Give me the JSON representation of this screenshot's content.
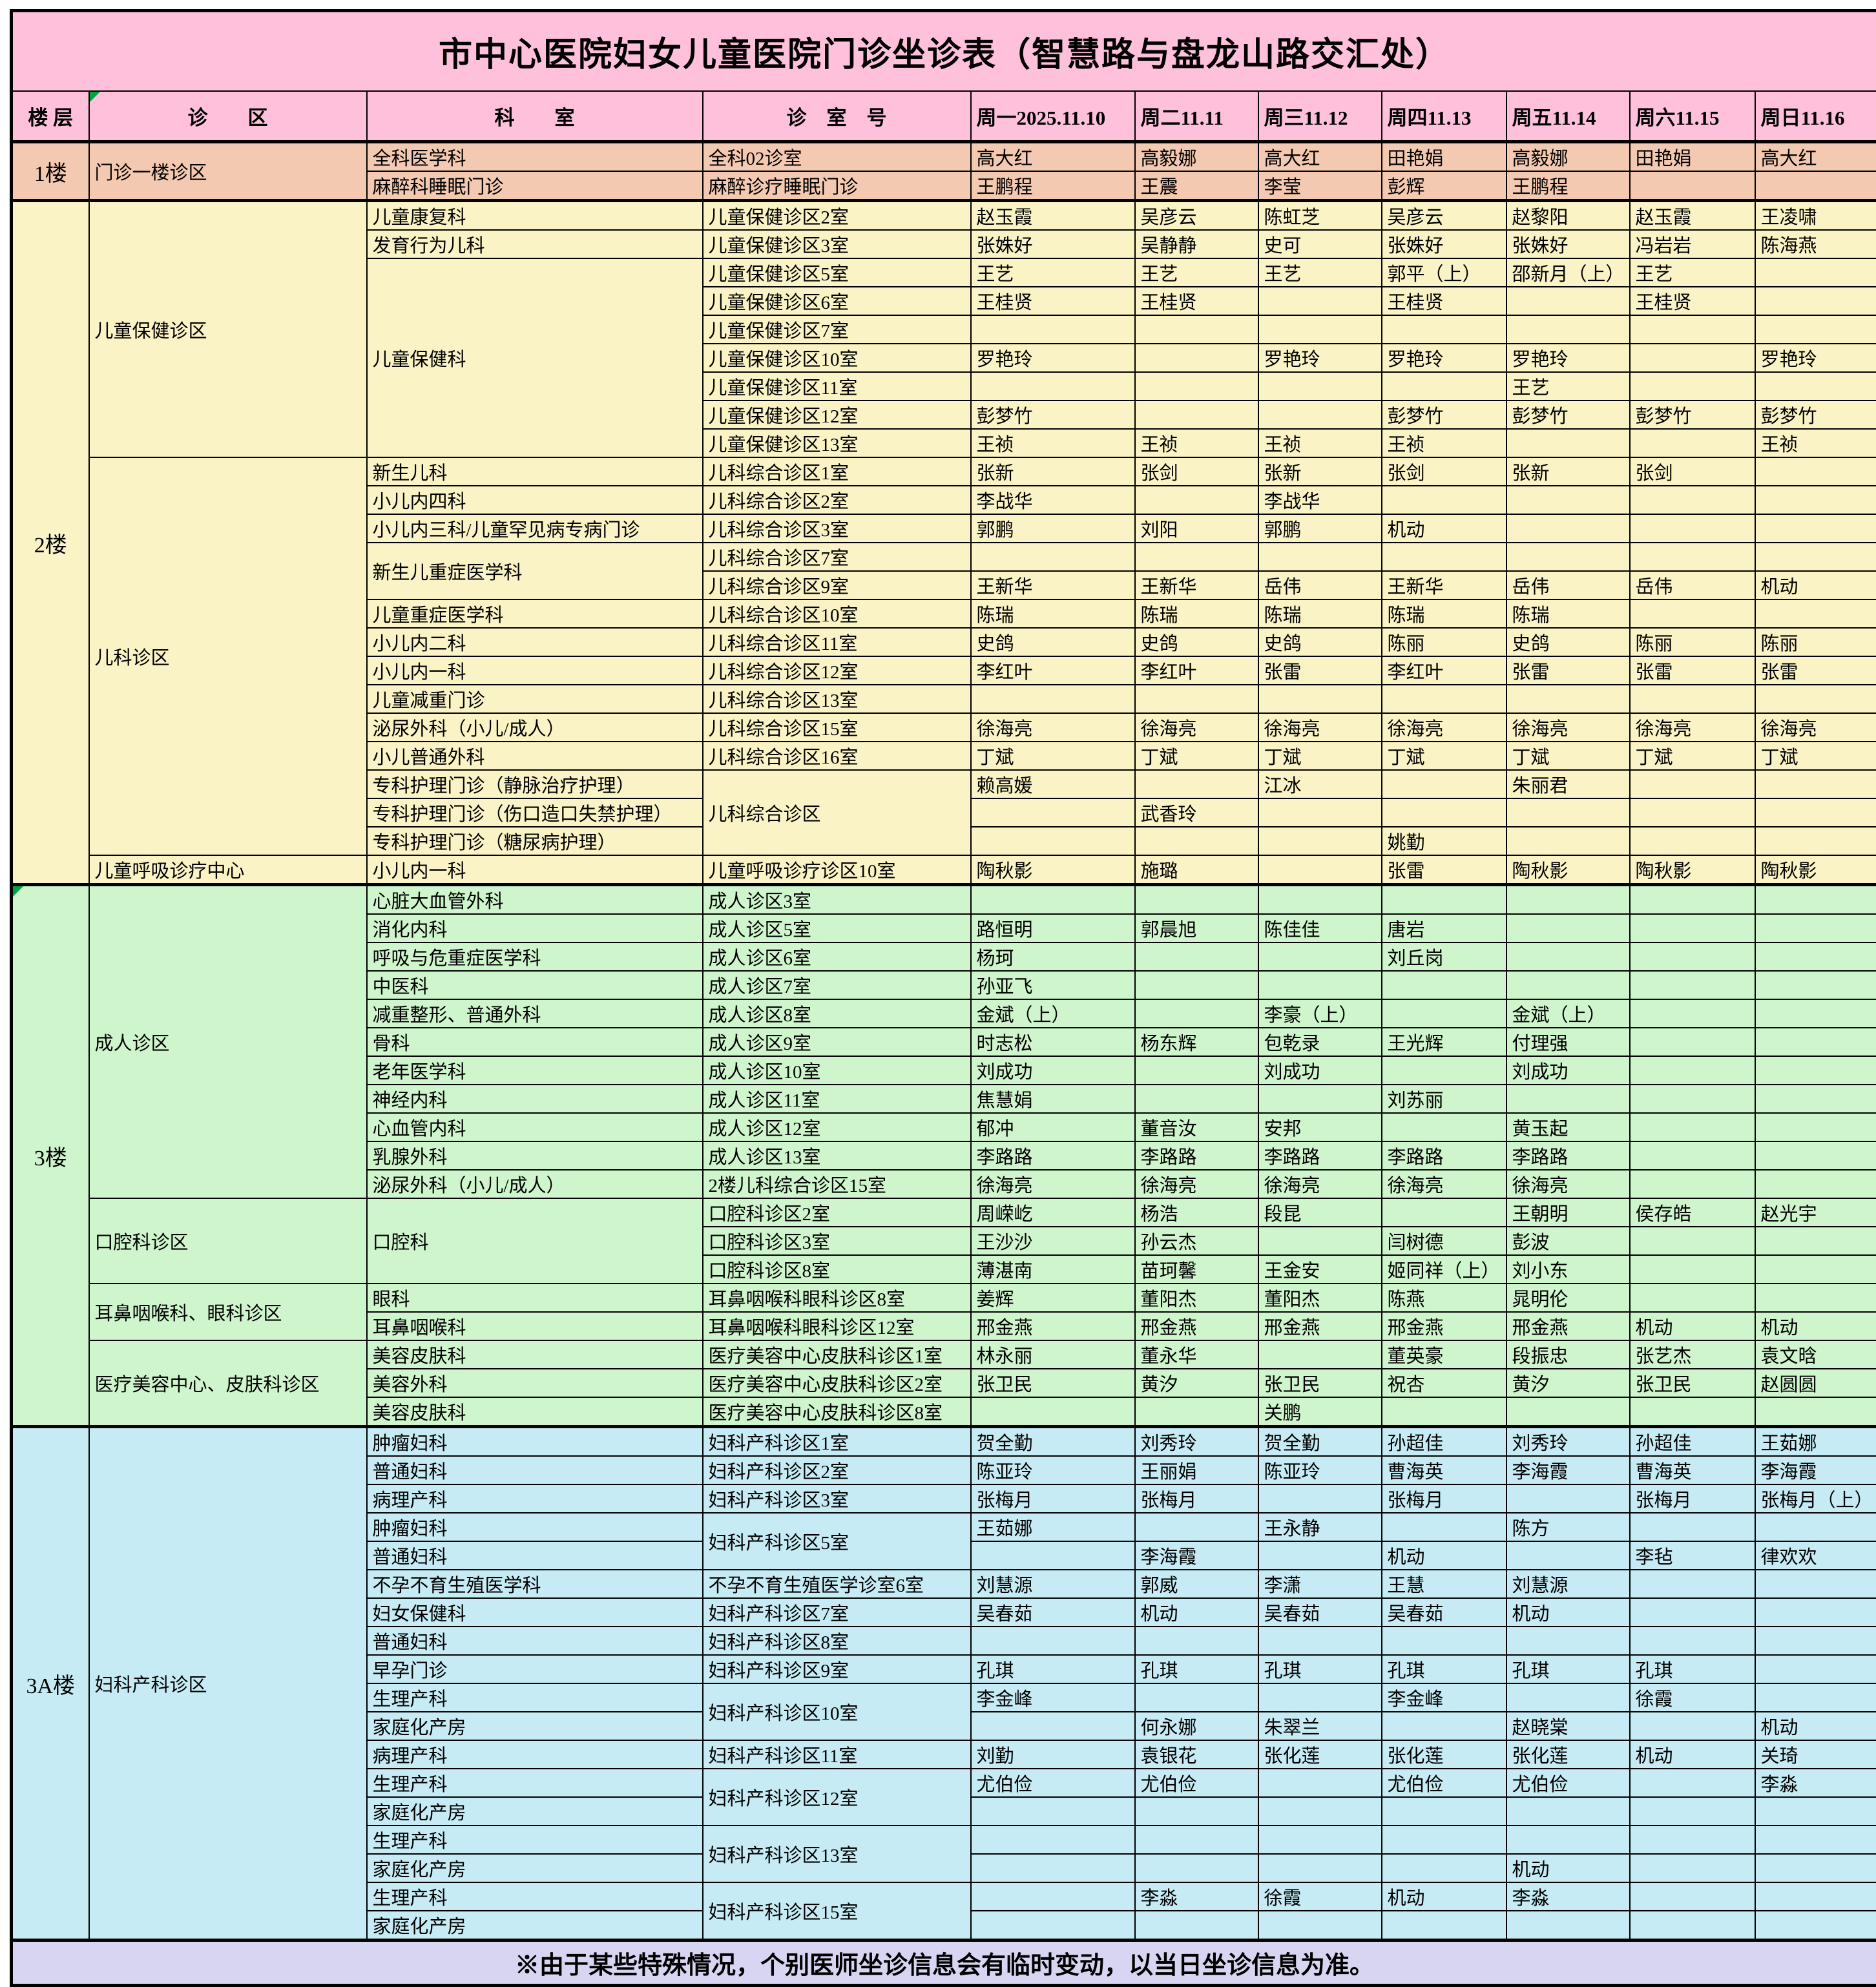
{
  "title": "市中心医院妇女儿童医院门诊坐诊表（智慧路与盘龙山路交汇处）",
  "footer": "※由于某些特殊情况，个别医师坐诊信息会有临时变动，以当日坐诊信息为准。",
  "columns": [
    "楼 层",
    "诊　　区",
    "科　　室",
    "诊　室　号",
    "周一2025.11.10",
    "周二11.11",
    "周三11.12",
    "周四11.13",
    "周五11.14",
    "周六11.15",
    "周日11.16"
  ],
  "colors": {
    "header_pink": "#FFC0DC",
    "f1": "#F4C9B1",
    "f2": "#FAF3C5",
    "f3": "#CFF5CD",
    "f3a": "#C6EBF4",
    "footer_lavender": "#D8D5F2",
    "border_black": "#000000",
    "flag_green": "#00A33D"
  },
  "rows": [
    {
      "floor": {
        "label": "1楼",
        "key": "f1",
        "span": 2
      },
      "area": {
        "label": "门诊一楼诊区",
        "span": 2
      },
      "dept": {
        "label": "全科医学科"
      },
      "room": {
        "label": "全科02诊室"
      },
      "days": [
        "高大红",
        "高毅娜",
        "高大红",
        "田艳娟",
        "高毅娜",
        "田艳娟",
        "高大红"
      ]
    },
    {
      "dept": {
        "label": "麻醉科睡眠门诊"
      },
      "room": {
        "label": "麻醉诊疗睡眠门诊"
      },
      "days": [
        "王鹏程",
        "王震",
        "李莹",
        "彭辉",
        "王鹏程",
        "",
        ""
      ]
    },
    {
      "floor": {
        "label": "2楼",
        "key": "f2",
        "span": 24
      },
      "area": {
        "label": "儿童保健诊区",
        "span": 9
      },
      "dept": {
        "label": "儿童康复科"
      },
      "room": {
        "label": "儿童保健诊区2室"
      },
      "days": [
        "赵玉霞",
        "吴彦云",
        "陈虹芝",
        "吴彦云",
        "赵黎阳",
        "赵玉霞",
        "王凌啸"
      ]
    },
    {
      "dept": {
        "label": "发育行为儿科"
      },
      "room": {
        "label": "儿童保健诊区3室"
      },
      "days": [
        "张姝好",
        "吴静静",
        "史可",
        "张姝好",
        "张姝好",
        "冯岩岩",
        "陈海燕"
      ]
    },
    {
      "dept": {
        "label": "儿童保健科",
        "span": 7
      },
      "room": {
        "label": "儿童保健诊区5室"
      },
      "days": [
        "王艺",
        "王艺",
        "王艺",
        "郭平（上）",
        "邵新月（上）",
        "王艺",
        ""
      ]
    },
    {
      "room": {
        "label": "儿童保健诊区6室"
      },
      "days": [
        "王桂贤",
        "王桂贤",
        "",
        "王桂贤",
        "",
        "王桂贤",
        ""
      ]
    },
    {
      "room": {
        "label": "儿童保健诊区7室"
      },
      "days": [
        "",
        "",
        "",
        "",
        "",
        "",
        ""
      ]
    },
    {
      "room": {
        "label": "儿童保健诊区10室"
      },
      "days": [
        "罗艳玲",
        "",
        "罗艳玲",
        "罗艳玲",
        "罗艳玲",
        "",
        "罗艳玲"
      ]
    },
    {
      "room": {
        "label": "儿童保健诊区11室"
      },
      "days": [
        "",
        "",
        "",
        "",
        "王艺",
        "",
        ""
      ]
    },
    {
      "room": {
        "label": "儿童保健诊区12室"
      },
      "days": [
        "彭梦竹",
        "",
        "",
        "彭梦竹",
        "彭梦竹",
        "彭梦竹",
        "彭梦竹"
      ]
    },
    {
      "room": {
        "label": "儿童保健诊区13室"
      },
      "days": [
        "王祯",
        "王祯",
        "王祯",
        "王祯",
        "",
        "",
        "王祯"
      ]
    },
    {
      "area": {
        "label": "儿科诊区",
        "span": 14
      },
      "dept": {
        "label": "新生儿科"
      },
      "room": {
        "label": "儿科综合诊区1室"
      },
      "days": [
        "张新",
        "张剑",
        "张新",
        "张剑",
        "张新",
        "张剑",
        ""
      ]
    },
    {
      "dept": {
        "label": "小儿内四科"
      },
      "room": {
        "label": "儿科综合诊区2室"
      },
      "days": [
        "李战华",
        "",
        "李战华",
        "",
        "",
        "",
        ""
      ]
    },
    {
      "dept": {
        "label": "小儿内三科/儿童罕见病专病门诊"
      },
      "room": {
        "label": "儿科综合诊区3室"
      },
      "days": [
        "郭鹏",
        "刘阳",
        "郭鹏",
        "机动",
        "",
        "",
        ""
      ]
    },
    {
      "dept": {
        "label": "新生儿重症医学科",
        "span": 2
      },
      "room": {
        "label": "儿科综合诊区7室"
      },
      "days": [
        "",
        "",
        "",
        "",
        "",
        "",
        ""
      ]
    },
    {
      "room": {
        "label": "儿科综合诊区9室"
      },
      "days": [
        "王新华",
        "王新华",
        "岳伟",
        "王新华",
        "岳伟",
        "岳伟",
        "机动"
      ]
    },
    {
      "dept": {
        "label": "儿童重症医学科"
      },
      "room": {
        "label": "儿科综合诊区10室"
      },
      "days": [
        "陈瑞",
        "陈瑞",
        "陈瑞",
        "陈瑞",
        "陈瑞",
        "",
        ""
      ]
    },
    {
      "dept": {
        "label": "小儿内二科"
      },
      "room": {
        "label": "儿科综合诊区11室"
      },
      "days": [
        "史鸽",
        "史鸽",
        "史鸽",
        "陈丽",
        "史鸽",
        "陈丽",
        "陈丽"
      ]
    },
    {
      "dept": {
        "label": "小儿内一科"
      },
      "room": {
        "label": "儿科综合诊区12室"
      },
      "days": [
        "李红叶",
        "李红叶",
        "张雷",
        "李红叶",
        "张雷",
        "张雷",
        "张雷"
      ]
    },
    {
      "dept": {
        "label": "儿童减重门诊"
      },
      "room": {
        "label": "儿科综合诊区13室"
      },
      "days": [
        "",
        "",
        "",
        "",
        "",
        "",
        ""
      ]
    },
    {
      "dept": {
        "label": "泌尿外科（小儿/成人）"
      },
      "room": {
        "label": "儿科综合诊区15室"
      },
      "days": [
        "徐海亮",
        "徐海亮",
        "徐海亮",
        "徐海亮",
        "徐海亮",
        "徐海亮",
        "徐海亮"
      ]
    },
    {
      "dept": {
        "label": "小儿普通外科"
      },
      "room": {
        "label": "儿科综合诊区16室"
      },
      "days": [
        "丁斌",
        "丁斌",
        "丁斌",
        "丁斌",
        "丁斌",
        "丁斌",
        "丁斌"
      ]
    },
    {
      "dept": {
        "label": "专科护理门诊（静脉治疗护理）"
      },
      "room": {
        "label": "儿科综合诊区",
        "span": 3
      },
      "days": [
        "赖高媛",
        "",
        "江冰",
        "",
        "朱丽君",
        "",
        ""
      ]
    },
    {
      "dept": {
        "label": "专科护理门诊（伤口造口失禁护理）"
      },
      "days": [
        "",
        "武香玲",
        "",
        "",
        "",
        "",
        ""
      ]
    },
    {
      "dept": {
        "label": "专科护理门诊（糖尿病护理）"
      },
      "days": [
        "",
        "",
        "",
        "姚勤",
        "",
        "",
        ""
      ]
    },
    {
      "area": {
        "label": "儿童呼吸诊疗中心",
        "span": 1
      },
      "dept": {
        "label": "小儿内一科"
      },
      "room": {
        "label": "儿童呼吸诊疗诊区10室"
      },
      "days": [
        "陶秋影",
        "施璐",
        "",
        "张雷",
        "陶秋影",
        "陶秋影",
        "陶秋影"
      ]
    },
    {
      "floor": {
        "label": "3楼",
        "key": "f3",
        "span": 19,
        "flag": true
      },
      "area": {
        "label": "成人诊区",
        "span": 11
      },
      "dept": {
        "label": "心脏大血管外科"
      },
      "room": {
        "label": "成人诊区3室"
      },
      "days": [
        "",
        "",
        "",
        "",
        "",
        "",
        ""
      ]
    },
    {
      "dept": {
        "label": "消化内科"
      },
      "room": {
        "label": "成人诊区5室"
      },
      "days": [
        "路恒明",
        "郭晨旭",
        "陈佳佳",
        "唐岩",
        "",
        "",
        ""
      ]
    },
    {
      "dept": {
        "label": "呼吸与危重症医学科"
      },
      "room": {
        "label": "成人诊区6室"
      },
      "days": [
        "杨珂",
        "",
        "",
        "刘丘岗",
        "",
        "",
        ""
      ]
    },
    {
      "dept": {
        "label": "中医科"
      },
      "room": {
        "label": "成人诊区7室"
      },
      "days": [
        "孙亚飞",
        "",
        "",
        "",
        "",
        "",
        ""
      ]
    },
    {
      "dept": {
        "label": "减重整形、普通外科"
      },
      "room": {
        "label": "成人诊区8室"
      },
      "days": [
        "金斌（上）",
        "",
        "李豪（上）",
        "",
        "金斌（上）",
        "",
        ""
      ]
    },
    {
      "dept": {
        "label": "骨科"
      },
      "room": {
        "label": "成人诊区9室"
      },
      "days": [
        "时志松",
        "杨东辉",
        "包乾录",
        "王光辉",
        "付理强",
        "",
        ""
      ]
    },
    {
      "dept": {
        "label": "老年医学科"
      },
      "room": {
        "label": "成人诊区10室"
      },
      "days": [
        "刘成功",
        "",
        "刘成功",
        "",
        "刘成功",
        "",
        ""
      ]
    },
    {
      "dept": {
        "label": "神经内科"
      },
      "room": {
        "label": "成人诊区11室"
      },
      "days": [
        "焦慧娟",
        "",
        "",
        "刘苏丽",
        "",
        "",
        ""
      ]
    },
    {
      "dept": {
        "label": "心血管内科"
      },
      "room": {
        "label": "成人诊区12室"
      },
      "days": [
        "郁冲",
        "董音汝",
        "安邦",
        "",
        "黄玉起",
        "",
        ""
      ]
    },
    {
      "dept": {
        "label": "乳腺外科"
      },
      "room": {
        "label": "成人诊区13室"
      },
      "days": [
        "李路路",
        "李路路",
        "李路路",
        "李路路",
        "李路路",
        "",
        ""
      ]
    },
    {
      "dept": {
        "label": "泌尿外科（小儿/成人）"
      },
      "room": {
        "label": "2楼儿科综合诊区15室"
      },
      "days": [
        "徐海亮",
        "徐海亮",
        "徐海亮",
        "徐海亮",
        "徐海亮",
        "",
        ""
      ]
    },
    {
      "area": {
        "label": "口腔科诊区",
        "span": 3
      },
      "dept": {
        "label": "口腔科",
        "span": 3
      },
      "room": {
        "label": "口腔科诊区2室"
      },
      "days": [
        "周嵘屹",
        "杨浩",
        "段昆",
        "",
        "王朝明",
        "侯存皓",
        "赵光宇"
      ]
    },
    {
      "room": {
        "label": "口腔科诊区3室"
      },
      "days": [
        "王沙沙",
        "孙云杰",
        "",
        "闫树德",
        "彭波",
        "",
        ""
      ]
    },
    {
      "room": {
        "label": "口腔科诊区8室"
      },
      "days": [
        "薄湛南",
        "苗珂馨",
        "王金安",
        "姬同祥（上）",
        "刘小东",
        "",
        ""
      ]
    },
    {
      "area": {
        "label": "耳鼻咽喉科、眼科诊区",
        "span": 2
      },
      "dept": {
        "label": "眼科"
      },
      "room": {
        "label": "耳鼻咽喉科眼科诊区8室"
      },
      "days": [
        "姜辉",
        "董阳杰",
        "董阳杰",
        "陈燕",
        "晁明伦",
        "",
        ""
      ]
    },
    {
      "dept": {
        "label": "耳鼻咽喉科"
      },
      "room": {
        "label": "耳鼻咽喉科眼科诊区12室"
      },
      "days": [
        "邢金燕",
        "邢金燕",
        "邢金燕",
        "邢金燕",
        "邢金燕",
        "机动",
        "机动"
      ]
    },
    {
      "area": {
        "label": "医疗美容中心、皮肤科诊区",
        "span": 3
      },
      "dept": {
        "label": "美容皮肤科"
      },
      "room": {
        "label": "医疗美容中心皮肤科诊区1室"
      },
      "days": [
        "林永丽",
        "董永华",
        "",
        "董英豪",
        "段振忠",
        "张艺杰",
        "袁文晗"
      ]
    },
    {
      "dept": {
        "label": "美容外科"
      },
      "room": {
        "label": "医疗美容中心皮肤科诊区2室"
      },
      "days": [
        "张卫民",
        "黄汐",
        "张卫民",
        "祝杏",
        "黄汐",
        "张卫民",
        "赵圆圆"
      ]
    },
    {
      "dept": {
        "label": "美容皮肤科"
      },
      "room": {
        "label": "医疗美容中心皮肤科诊区8室"
      },
      "days": [
        "",
        "",
        "关鹏",
        "",
        "",
        "",
        ""
      ]
    },
    {
      "floor": {
        "label": "3A楼",
        "key": "f3a",
        "span": 18
      },
      "area": {
        "label": "妇科产科诊区",
        "span": 18
      },
      "dept": {
        "label": "肿瘤妇科"
      },
      "room": {
        "label": "妇科产科诊区1室"
      },
      "days": [
        "贺全勤",
        "刘秀玲",
        "贺全勤",
        "孙超佳",
        "刘秀玲",
        "孙超佳",
        "王茹娜"
      ]
    },
    {
      "dept": {
        "label": "普通妇科"
      },
      "room": {
        "label": "妇科产科诊区2室"
      },
      "days": [
        "陈亚玲",
        "王丽娟",
        "陈亚玲",
        "曹海英",
        "李海霞",
        "曹海英",
        "李海霞"
      ]
    },
    {
      "dept": {
        "label": "病理产科"
      },
      "room": {
        "label": "妇科产科诊区3室"
      },
      "days": [
        "张梅月",
        "张梅月",
        "",
        "张梅月",
        "",
        "张梅月",
        "张梅月（上）"
      ]
    },
    {
      "dept": {
        "label": "肿瘤妇科"
      },
      "room": {
        "label": "妇科产科诊区5室",
        "span": 2
      },
      "days": [
        "王茹娜",
        "",
        "王永静",
        "",
        "陈方",
        "",
        ""
      ]
    },
    {
      "dept": {
        "label": "普通妇科"
      },
      "days": [
        "",
        "李海霞",
        "",
        "机动",
        "",
        "李毡",
        "律欢欢"
      ]
    },
    {
      "dept": {
        "label": "不孕不育生殖医学科"
      },
      "room": {
        "label": "不孕不育生殖医学诊室6室"
      },
      "days": [
        "刘慧源",
        "郭威",
        "李潇",
        "王慧",
        "刘慧源",
        "",
        ""
      ]
    },
    {
      "dept": {
        "label": "妇女保健科"
      },
      "room": {
        "label": "妇科产科诊区7室"
      },
      "days": [
        "吴春茹",
        "机动",
        "吴春茹",
        "吴春茹",
        "机动",
        "",
        ""
      ]
    },
    {
      "dept": {
        "label": "普通妇科"
      },
      "room": {
        "label": "妇科产科诊区8室"
      },
      "days": [
        "",
        "",
        "",
        "",
        "",
        "",
        ""
      ]
    },
    {
      "dept": {
        "label": "早孕门诊"
      },
      "room": {
        "label": "妇科产科诊区9室"
      },
      "days": [
        "孔琪",
        "孔琪",
        "孔琪",
        "孔琪",
        "孔琪",
        "孔琪",
        ""
      ]
    },
    {
      "dept": {
        "label": "生理产科"
      },
      "room": {
        "label": "妇科产科诊区10室",
        "span": 2
      },
      "days": [
        "李金峰",
        "",
        "",
        "李金峰",
        "",
        "徐霞",
        ""
      ]
    },
    {
      "dept": {
        "label": "家庭化产房"
      },
      "days": [
        "",
        "何永娜",
        "朱翠兰",
        "",
        "赵晓棠",
        "",
        "机动"
      ]
    },
    {
      "dept": {
        "label": "病理产科"
      },
      "room": {
        "label": "妇科产科诊区11室"
      },
      "days": [
        "刘勤",
        "袁银花",
        "张化莲",
        "张化莲",
        "张化莲",
        "机动",
        "关琦"
      ]
    },
    {
      "dept": {
        "label": "生理产科"
      },
      "room": {
        "label": "妇科产科诊区12室",
        "span": 2
      },
      "days": [
        "尤伯俭",
        "尤伯俭",
        "",
        "尤伯俭",
        "尤伯俭",
        "",
        "李淼"
      ]
    },
    {
      "dept": {
        "label": "家庭化产房"
      },
      "days": [
        "",
        "",
        "",
        "",
        "",
        "",
        ""
      ]
    },
    {
      "dept": {
        "label": "生理产科"
      },
      "room": {
        "label": "妇科产科诊区13室",
        "span": 2
      },
      "days": [
        "",
        "",
        "",
        "",
        "",
        "",
        ""
      ]
    },
    {
      "dept": {
        "label": "家庭化产房"
      },
      "days": [
        "",
        "",
        "",
        "",
        "机动",
        "",
        ""
      ]
    },
    {
      "dept": {
        "label": "生理产科"
      },
      "room": {
        "label": "妇科产科诊区15室",
        "span": 2
      },
      "days": [
        "",
        "李淼",
        "徐霞",
        "机动",
        "李淼",
        "",
        ""
      ]
    },
    {
      "dept": {
        "label": "家庭化产房"
      },
      "days": [
        "",
        "",
        "",
        "",
        "",
        "",
        ""
      ]
    }
  ]
}
